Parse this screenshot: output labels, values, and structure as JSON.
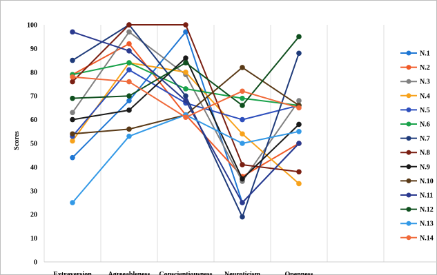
{
  "chart_data": {
    "type": "line",
    "categories": [
      "Extraversion",
      "Agreeableness",
      "Conscientiousness",
      "Neuroticism",
      "Openness"
    ],
    "ylabel": "Scores",
    "ylim": [
      0,
      100
    ],
    "yticks": [
      0,
      10,
      20,
      30,
      40,
      50,
      60,
      70,
      80,
      90,
      100
    ],
    "grid": "vertical",
    "legend_position": "right",
    "series": [
      {
        "name": "N.1",
        "color": "#1f77d4",
        "values": [
          44,
          68,
          97,
          25,
          50
        ]
      },
      {
        "name": "N.2",
        "color": "#f05a28",
        "values": [
          79,
          92,
          62,
          36,
          50
        ]
      },
      {
        "name": "N.3",
        "color": "#808080",
        "values": [
          63,
          97,
          79,
          34,
          68
        ]
      },
      {
        "name": "N.4",
        "color": "#f7a21b",
        "values": [
          51,
          84,
          80,
          54,
          33
        ]
      },
      {
        "name": "N.5",
        "color": "#2e4fbd",
        "values": [
          53,
          81,
          67,
          60,
          66
        ]
      },
      {
        "name": "N.6",
        "color": "#19a24a",
        "values": [
          79,
          84,
          73,
          69,
          66
        ]
      },
      {
        "name": "N.7",
        "color": "#1f3b7a",
        "values": [
          85,
          100,
          70,
          19,
          88
        ]
      },
      {
        "name": "N.8",
        "color": "#7a1f12",
        "values": [
          76,
          100,
          100,
          41,
          38
        ]
      },
      {
        "name": "N.9",
        "color": "#1a1a1a",
        "values": [
          60,
          64,
          86,
          35,
          58
        ]
      },
      {
        "name": "N.10",
        "color": "#5a3a17",
        "values": [
          54,
          56,
          62,
          82,
          66
        ]
      },
      {
        "name": "N.11",
        "color": "#2b3a8f",
        "values": [
          97,
          89,
          68,
          25,
          50
        ]
      },
      {
        "name": "N.12",
        "color": "#0f4f1e",
        "values": [
          69,
          70,
          84,
          66,
          95
        ]
      },
      {
        "name": "N.13",
        "color": "#3399e6",
        "values": [
          25,
          53,
          62,
          50,
          55
        ]
      },
      {
        "name": "N.14",
        "color": "#f06a3a",
        "values": [
          78,
          76,
          61,
          72,
          65
        ]
      }
    ]
  }
}
